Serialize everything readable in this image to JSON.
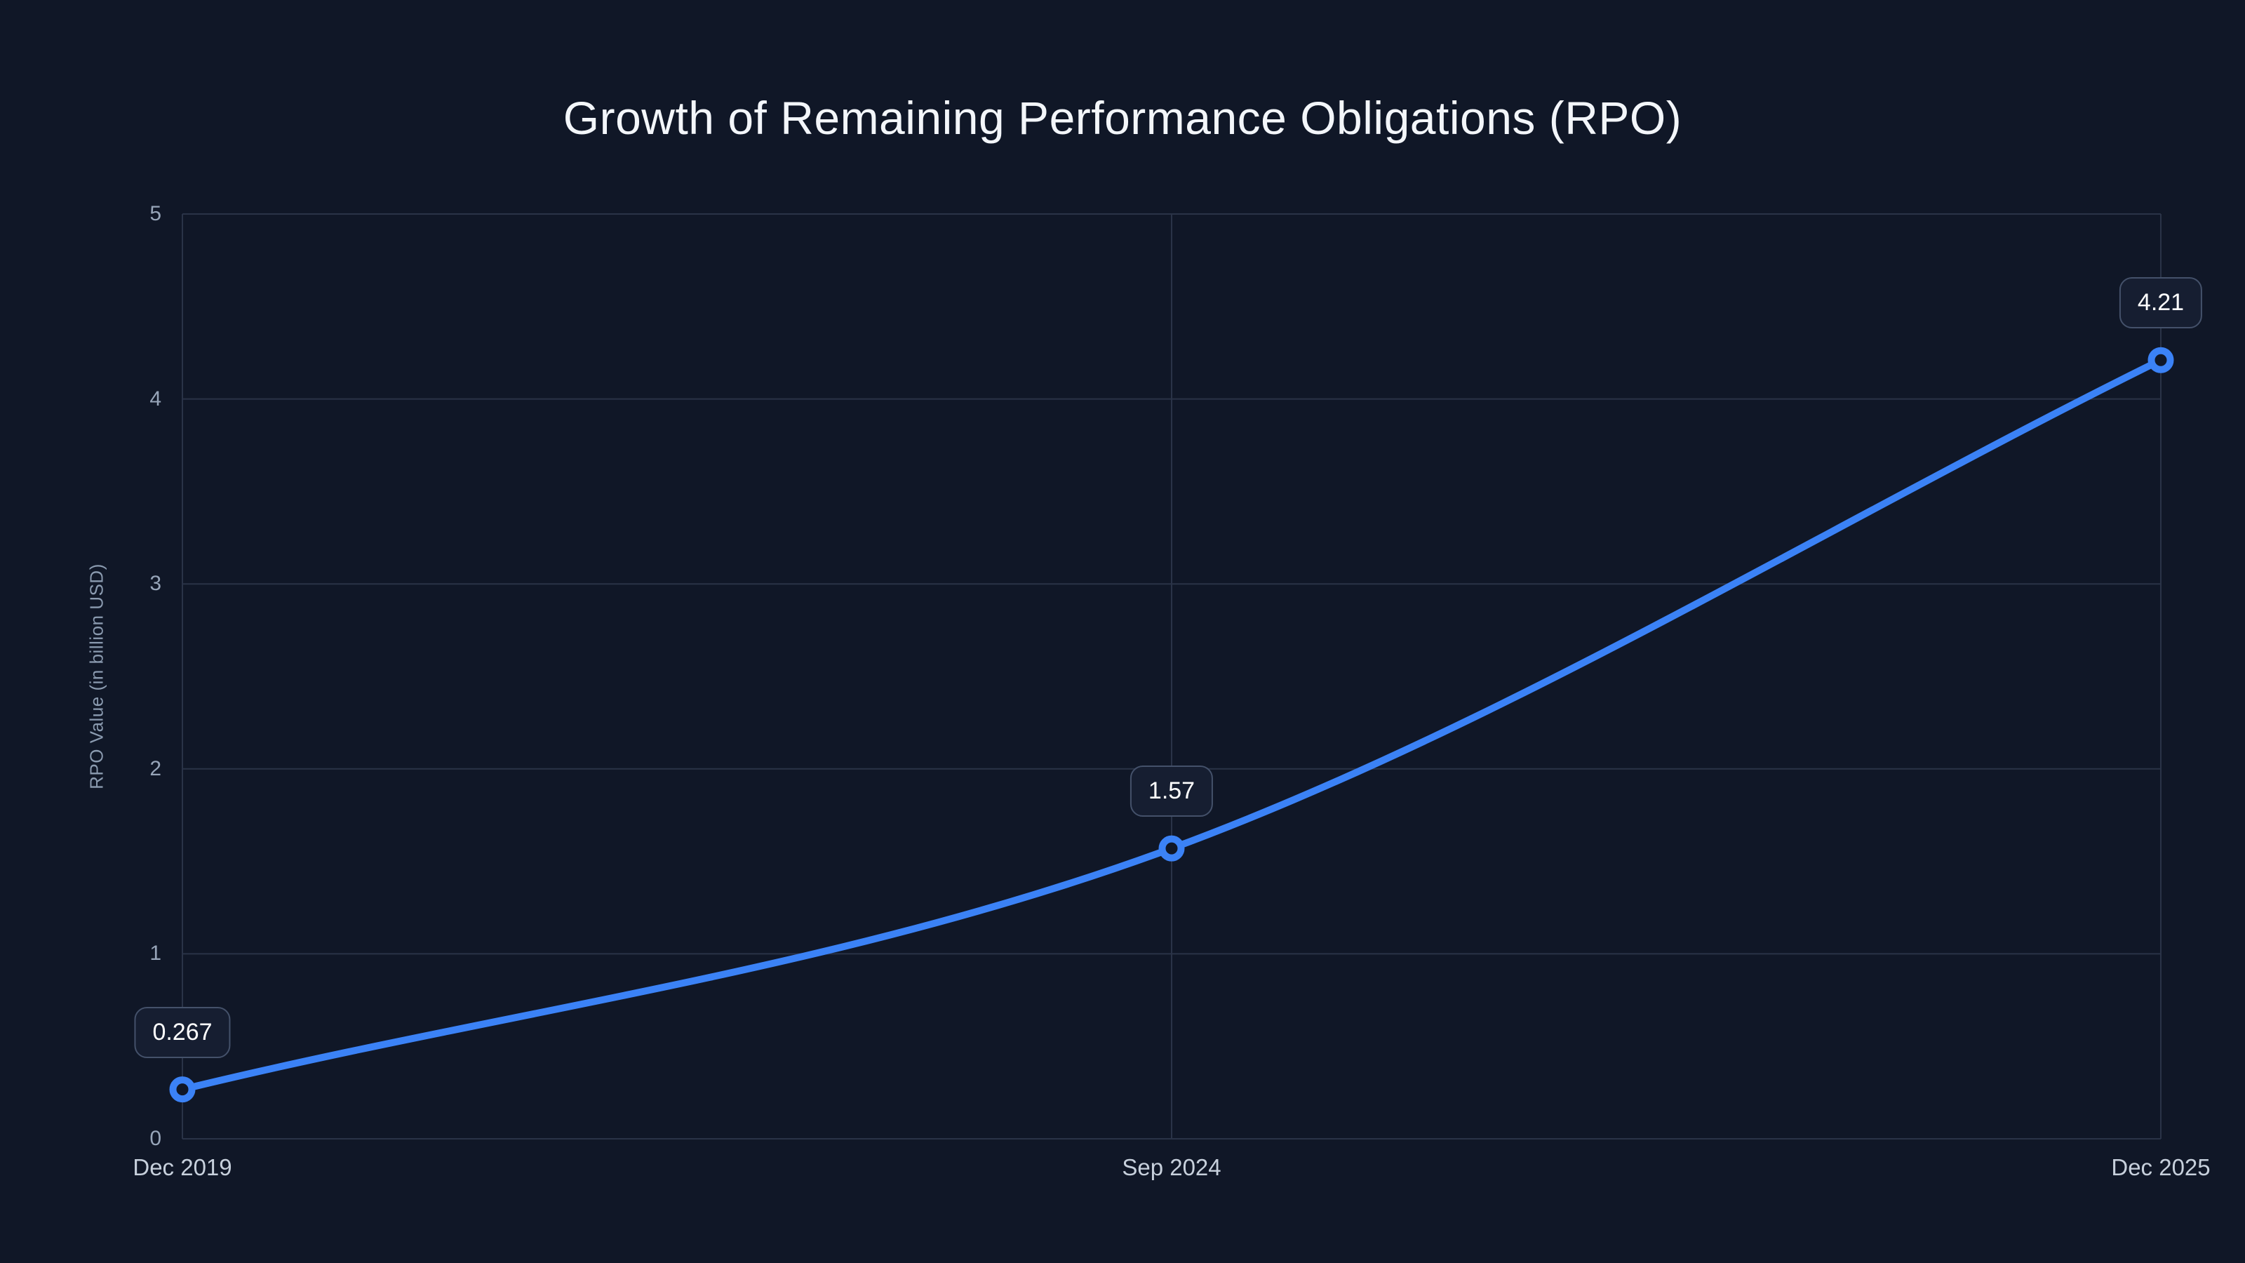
{
  "page": {
    "background_color": "#101727"
  },
  "chart_data": {
    "type": "line",
    "title": "Growth of Remaining Performance Obligations (RPO)",
    "ylabel": "RPO Value (in billion USD)",
    "xlabel": "",
    "categories": [
      "Dec 2019",
      "Sep 2024",
      "Dec 2025"
    ],
    "values": [
      0.267,
      1.57,
      4.21
    ],
    "point_labels": [
      "0.267",
      "1.57",
      "4.21"
    ],
    "ylim": [
      0,
      5
    ],
    "y_ticks": [
      0,
      1,
      2,
      3,
      4,
      5
    ],
    "grid": "on",
    "legend": "none",
    "curve": "smooth",
    "colors": {
      "line": "#3b82f6",
      "marker_ring": "#3b82f6",
      "marker_fill": "#101727",
      "grid": "#2a3347",
      "title_text": "#f3f6fa",
      "y_tick_text": "#97a5b9",
      "x_tick_text": "#c7d0dc",
      "axis_label_text": "#8b9bb0",
      "label_box_bg": "#161e31",
      "label_box_border": "#44516a",
      "label_box_text": "#ffffff",
      "background": "#101727"
    }
  }
}
